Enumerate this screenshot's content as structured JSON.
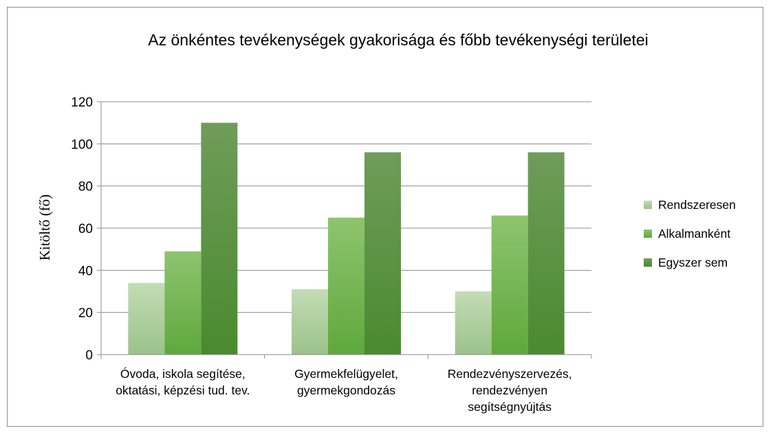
{
  "chart_data": {
    "type": "bar",
    "title": "Az önkéntes tevékenységek gyakorisága és főbb tevékenységi területei",
    "xlabel": "",
    "ylabel": "Kitöltő (fő)",
    "ylim": [
      0,
      120
    ],
    "yticks": [
      0,
      20,
      40,
      60,
      80,
      100,
      120
    ],
    "grid": true,
    "legend_position": "right",
    "categories": [
      [
        "Óvoda, iskola segítése,",
        "oktatási, képzési tud. tev."
      ],
      [
        "Gyermekfelügyelet,",
        "gyermekgondozás"
      ],
      [
        "Rendezvényszervezés,",
        "rendezvényen",
        "segítségnyújtás"
      ]
    ],
    "series": [
      {
        "name": "Rendszeresen",
        "values": [
          34,
          31,
          30
        ],
        "color_top": "#c3dcb5",
        "color_bottom": "#9bc28a"
      },
      {
        "name": "Alkalmanként",
        "values": [
          49,
          65,
          66
        ],
        "color_top": "#8ec46f",
        "color_bottom": "#5fa83c"
      },
      {
        "name": "Egyszer sem",
        "values": [
          110,
          96,
          96
        ],
        "color_top": "#6f9c5a",
        "color_bottom": "#4a8a2e"
      }
    ]
  }
}
